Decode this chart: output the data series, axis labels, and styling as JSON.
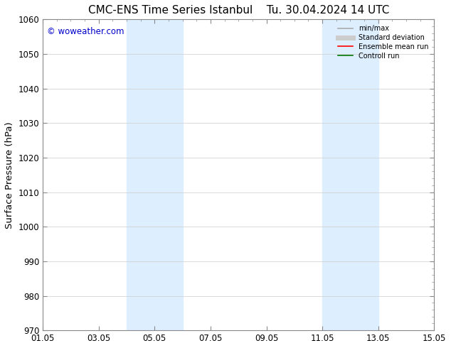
{
  "title_left": "CMC-ENS Time Series Istanbul",
  "title_right": "Tu. 30.04.2024 14 UTC",
  "ylabel": "Surface Pressure (hPa)",
  "xlabel_ticks": [
    "01.05",
    "03.05",
    "05.05",
    "07.05",
    "09.05",
    "11.05",
    "13.05",
    "15.05"
  ],
  "x_tick_positions": [
    0,
    2,
    4,
    6,
    8,
    10,
    12,
    14
  ],
  "xlim": [
    0,
    14
  ],
  "ylim": [
    970,
    1060
  ],
  "yticks": [
    970,
    980,
    990,
    1000,
    1010,
    1020,
    1030,
    1040,
    1050,
    1060
  ],
  "watermark": "© woweather.com",
  "watermark_color": "#0000cc",
  "shaded_regions": [
    {
      "xmin": 3.0,
      "xmax": 5.0
    },
    {
      "xmin": 10.0,
      "xmax": 12.0
    }
  ],
  "shaded_color": "#ddeeff",
  "background_color": "#ffffff",
  "grid_color": "#cccccc",
  "legend_items": [
    {
      "label": "min/max",
      "color": "#aaaaaa",
      "lw": 1.2,
      "style": "solid"
    },
    {
      "label": "Standard deviation",
      "color": "#cccccc",
      "lw": 5,
      "style": "solid"
    },
    {
      "label": "Ensemble mean run",
      "color": "#ff0000",
      "lw": 1.2,
      "style": "solid"
    },
    {
      "label": "Controll run",
      "color": "#007700",
      "lw": 1.2,
      "style": "solid"
    }
  ],
  "tick_label_fontsize": 8.5,
  "axis_label_fontsize": 9.5,
  "title_fontsize": 11
}
